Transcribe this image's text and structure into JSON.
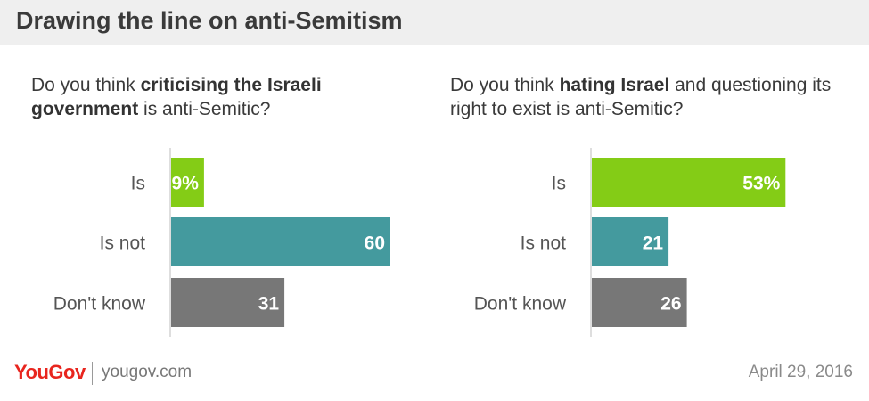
{
  "header": {
    "title": "Drawing the line on anti-Semitism"
  },
  "colors": {
    "is": "#84cc16",
    "is_not": "#449a9e",
    "dont_know": "#777777",
    "brand": "#e8251e"
  },
  "chart_data": [
    {
      "type": "bar",
      "orientation": "horizontal",
      "title_parts": [
        "Do you think ",
        "criticising the Israeli government",
        " is anti-Semitic?"
      ],
      "categories": [
        "Is",
        "Is not",
        "Don't know"
      ],
      "values": [
        9,
        60,
        31
      ],
      "value_labels": [
        "9%",
        "60",
        "31"
      ],
      "xlim": [
        0,
        100
      ]
    },
    {
      "type": "bar",
      "orientation": "horizontal",
      "title_parts": [
        "Do you think ",
        "hating Israel",
        " and questioning its right to exist is anti-Semitic?"
      ],
      "categories": [
        "Is",
        "Is not",
        "Don't know"
      ],
      "values": [
        53,
        21,
        26
      ],
      "value_labels": [
        "53%",
        "21",
        "26"
      ],
      "xlim": [
        0,
        100
      ]
    }
  ],
  "footer": {
    "logo": "YouGov",
    "url": "yougov.com",
    "date": "April 29, 2016"
  }
}
